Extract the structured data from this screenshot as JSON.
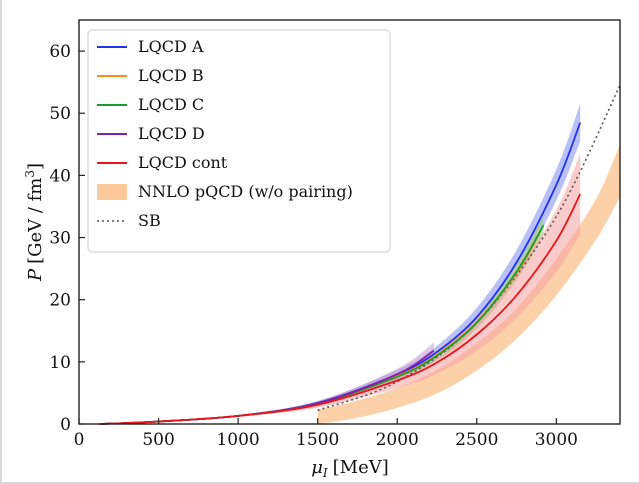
{
  "chart_data": {
    "type": "line",
    "xlabel_main": "μ",
    "xlabel_sub": "I",
    "xlabel_unit": "[MeV]",
    "ylabel_main": "P",
    "ylabel_unit": "[GeV / fm",
    "ylabel_exp": "3",
    "ylabel_close": "]",
    "xlim": [
      0,
      3400
    ],
    "ylim": [
      0,
      65
    ],
    "xticks": [
      0,
      500,
      1000,
      1500,
      2000,
      2500,
      3000
    ],
    "yticks": [
      0,
      10,
      20,
      30,
      40,
      50,
      60
    ],
    "grid": false,
    "legend_position": "top-left",
    "series": [
      {
        "name": "LQCD A",
        "color": "#2233ee",
        "band_color": "#7f8cf2",
        "x": [
          130,
          500,
          1000,
          1500,
          2000,
          2250,
          2500,
          2750,
          3000,
          3150
        ],
        "y": [
          0.0,
          0.4,
          1.3,
          3.4,
          8.0,
          11.6,
          17.2,
          26.0,
          38.5,
          48.5
        ],
        "err": [
          0,
          0,
          0.1,
          0.3,
          0.7,
          1.0,
          1.5,
          2.0,
          2.5,
          3.0
        ]
      },
      {
        "name": "LQCD B",
        "color": "#ff8c1a",
        "band_color": "#ffc080",
        "x": [
          130,
          500,
          1000,
          1500,
          2000,
          2250,
          2500,
          2750,
          2900
        ],
        "y": [
          0.0,
          0.4,
          1.3,
          3.3,
          7.7,
          11.1,
          16.4,
          24.3,
          31.0
        ],
        "err": [
          0,
          0,
          0.1,
          0.2,
          0.5,
          0.8,
          1.0,
          1.2,
          1.4
        ]
      },
      {
        "name": "LQCD C",
        "color": "#1e9b2e",
        "band_color": "#8fcd96",
        "x": [
          130,
          500,
          1000,
          1500,
          2000,
          2250,
          2500,
          2750,
          2920
        ],
        "y": [
          0.0,
          0.4,
          1.3,
          3.3,
          7.6,
          11.0,
          16.3,
          24.5,
          32.0
        ],
        "err": [
          0,
          0,
          0.1,
          0.2,
          0.5,
          0.8,
          1.0,
          1.3,
          1.5
        ]
      },
      {
        "name": "LQCD D",
        "color": "#8a1ea8",
        "band_color": "#c79ad4",
        "x": [
          130,
          500,
          1000,
          1500,
          2000,
          2230
        ],
        "y": [
          0.0,
          0.4,
          1.3,
          3.3,
          8.0,
          11.8
        ],
        "err": [
          0,
          0,
          0.15,
          0.4,
          0.9,
          1.3
        ]
      },
      {
        "name": "LQCD cont",
        "color": "#e8161a",
        "band_color": "#f6a0a0",
        "x": [
          130,
          500,
          1000,
          1500,
          2000,
          2250,
          2500,
          2750,
          3000,
          3150
        ],
        "y": [
          0.0,
          0.4,
          1.3,
          3.1,
          7.0,
          9.9,
          14.4,
          20.7,
          29.5,
          37.0
        ],
        "err": [
          0,
          0,
          0.15,
          0.5,
          1.2,
          1.8,
          2.6,
          3.6,
          5.0,
          6.5
        ]
      },
      {
        "name": "NNLO pQCD (w/o pairing)",
        "kind": "band",
        "color": "#fbc99a",
        "x": [
          1500,
          1750,
          2000,
          2250,
          2500,
          2750,
          3000,
          3250,
          3400
        ],
        "y_low": [
          0.0,
          1.0,
          2.6,
          4.9,
          8.6,
          13.7,
          20.7,
          29.7,
          36.5
        ],
        "y_high": [
          2.3,
          3.8,
          5.8,
          8.7,
          13.0,
          18.6,
          26.6,
          36.2,
          45.0
        ]
      },
      {
        "name": "SB",
        "kind": "dotted",
        "color": "#555555",
        "x": [
          1500,
          2000,
          2500,
          3000,
          3400
        ],
        "y": [
          2.2,
          6.8,
          16.3,
          33.4,
          54.5
        ]
      }
    ]
  }
}
